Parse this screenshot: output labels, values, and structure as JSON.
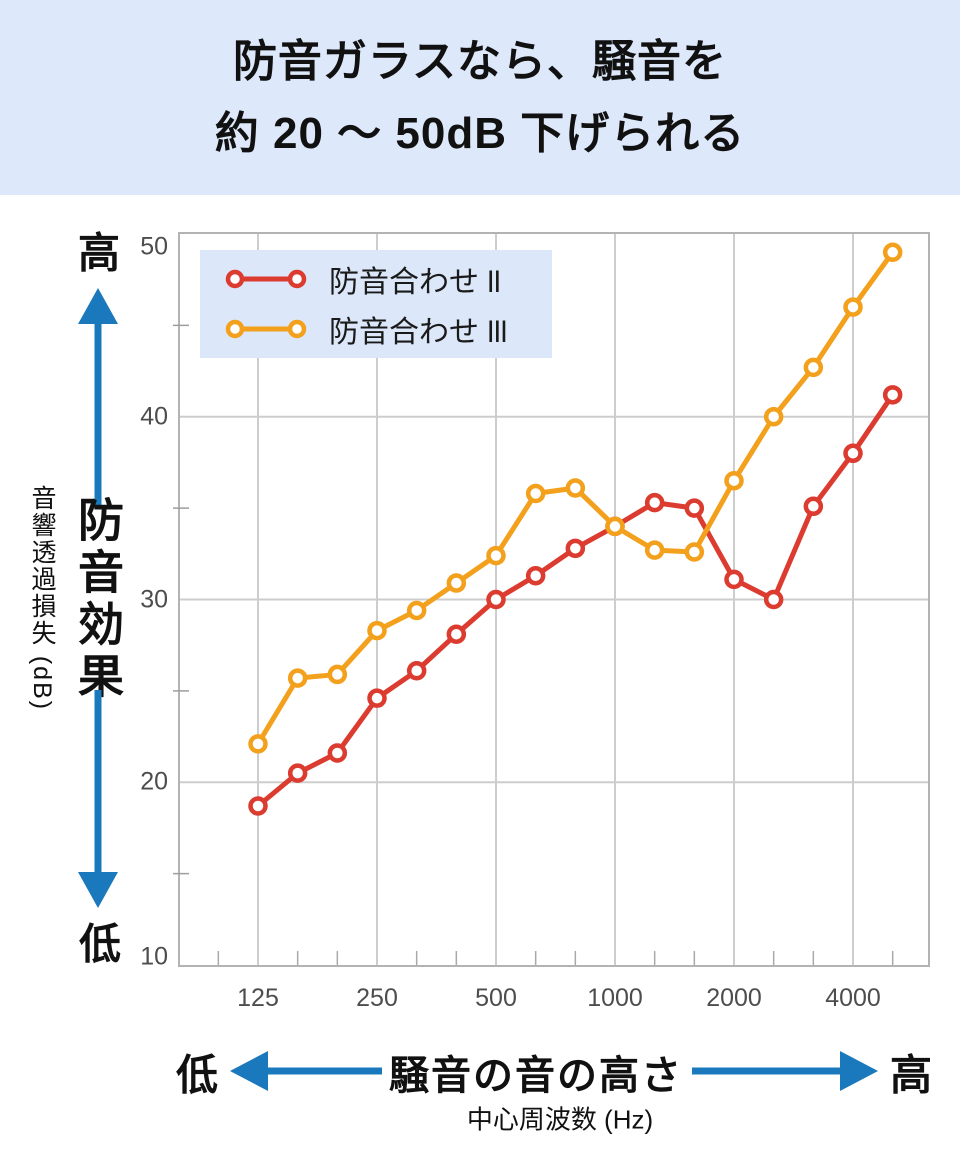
{
  "title": {
    "line1": "防音ガラスなら、騒音を",
    "line2": "約 20 ～ 50dB 下げられる"
  },
  "legend": {
    "items": [
      {
        "label": "防音合わせ ll",
        "color": "#dc3b2f"
      },
      {
        "label": "防音合わせ lll",
        "color": "#f3a01c"
      }
    ]
  },
  "y_axis": {
    "high_label": "高",
    "low_label": "低",
    "effect_label": "防音効果",
    "unit_label": "音響透過損失 (dB)",
    "ticks": [
      50,
      40,
      30,
      20,
      10
    ],
    "minor_ticks": [
      45,
      35,
      25,
      15
    ]
  },
  "x_axis": {
    "low_label": "低",
    "high_label": "高",
    "pitch_label": "騒音の音の高さ",
    "unit_label": "中心周波数 (Hz)",
    "ticks": [
      125,
      250,
      500,
      1000,
      2000,
      4000
    ]
  },
  "colors": {
    "series_red": "#dc3b2f",
    "series_orange": "#f3a01c",
    "arrow_blue": "#1a78bc",
    "band_bg": "#dde8fa",
    "grid": "#cdcdcd"
  },
  "chart_data": {
    "type": "line",
    "x_scale": "log-1/3-octave",
    "x": [
      125,
      160,
      200,
      250,
      315,
      400,
      500,
      630,
      800,
      1000,
      1250,
      1600,
      2000,
      2500,
      3150,
      4000,
      5000
    ],
    "series": [
      {
        "name": "防音合わせ ll",
        "color": "#dc3b2f",
        "values": [
          18.7,
          20.5,
          21.6,
          24.6,
          26.1,
          28.1,
          30.0,
          31.3,
          32.8,
          34.0,
          35.3,
          35.0,
          31.1,
          30.0,
          35.1,
          38.0,
          41.2
        ]
      },
      {
        "name": "防音合わせ lll",
        "color": "#f3a01c",
        "values": [
          22.1,
          25.7,
          25.9,
          28.3,
          29.4,
          30.9,
          32.4,
          35.8,
          36.1,
          34.0,
          32.7,
          32.6,
          36.5,
          40.0,
          42.7,
          46.0,
          49.0
        ]
      }
    ],
    "title": "防音ガラスなら、騒音を約 20 ～ 50dB 下げられる",
    "xlabel": "中心周波数 (Hz)",
    "ylabel": "音響透過損失 (dB)",
    "ylim": [
      10,
      50
    ],
    "x_major_ticks": [
      125,
      250,
      500,
      1000,
      2000,
      4000
    ],
    "grid": true,
    "legend_position": "top-left"
  }
}
